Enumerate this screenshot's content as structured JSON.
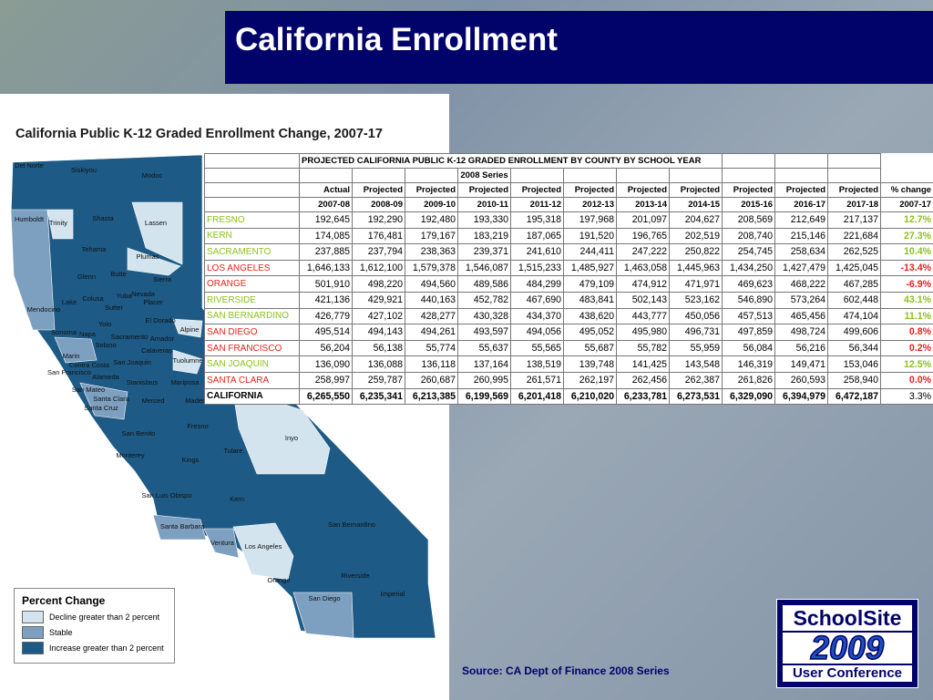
{
  "header": {
    "title": "California Enrollment"
  },
  "map": {
    "title": "California Public K-12 Graded Enrollment Change, 2007-17",
    "counties": [
      "Del Norte",
      "Siskiyou",
      "Modoc",
      "Humboldt",
      "Trinity",
      "Shasta",
      "Lassen",
      "Tehama",
      "Plumas",
      "Mendocino",
      "Glenn",
      "Butte",
      "Sierra",
      "Lake",
      "Colusa",
      "Yuba",
      "Nevada",
      "Placer",
      "Sutter",
      "Yolo",
      "El Dorado",
      "Sonoma",
      "Napa",
      "Sacramento",
      "Amador",
      "Alpine",
      "Solano",
      "Marin",
      "Contra Costa",
      "Calaveras",
      "San Francisco",
      "Alameda",
      "San Joaquin",
      "Tuolumne",
      "Stanislaus",
      "Mariposa",
      "San Mateo",
      "Santa Clara",
      "Santa Cruz",
      "Merced",
      "Madera",
      "Fresno",
      "Inyo",
      "San Benito",
      "Tulare",
      "Monterey",
      "Kings",
      "San Luis Obispo",
      "Kern",
      "Santa Barbara",
      "San Bernardino",
      "Ventura",
      "Los Angeles",
      "Riverside",
      "Orange",
      "San Diego",
      "Imperial"
    ],
    "legend": {
      "title": "Percent Change",
      "items": [
        {
          "label": "Decline greater than 2 percent",
          "color": "#d3e4ee"
        },
        {
          "label": "Stable",
          "color": "#7d9fc0"
        },
        {
          "label": "Increase greater than 2 percent",
          "color": "#1d5a86"
        }
      ]
    }
  },
  "table": {
    "title": "PROJECTED CALIFORNIA PUBLIC K-12 GRADED ENROLLMENT BY COUNTY BY SCHOOL YEAR",
    "series": "2008 Series",
    "kinds": [
      "Actual",
      "Projected",
      "Projected",
      "Projected",
      "Projected",
      "Projected",
      "Projected",
      "Projected",
      "Projected",
      "Projected",
      "Projected",
      "% change"
    ],
    "years": [
      "2007-08",
      "2008-09",
      "2009-10",
      "2010-11",
      "2011-12",
      "2012-13",
      "2013-14",
      "2014-15",
      "2015-16",
      "2016-17",
      "2017-18",
      "2007-17"
    ],
    "rows": [
      {
        "name": "FRESNO",
        "color": "#8cc21a",
        "values": [
          "192,645",
          "192,290",
          "192,480",
          "193,330",
          "195,318",
          "197,968",
          "201,097",
          "204,627",
          "208,569",
          "212,649",
          "217,137"
        ],
        "change": "12.7%"
      },
      {
        "name": "KERN",
        "color": "#8cc21a",
        "values": [
          "174,085",
          "176,481",
          "179,167",
          "183,219",
          "187,065",
          "191,520",
          "196,765",
          "202,519",
          "208,740",
          "215,146",
          "221,684"
        ],
        "change": "27.3%"
      },
      {
        "name": "SACRAMENTO",
        "color": "#8cc21a",
        "values": [
          "237,885",
          "237,794",
          "238,363",
          "239,371",
          "241,610",
          "244,411",
          "247,222",
          "250,822",
          "254,745",
          "258,634",
          "262,525"
        ],
        "change": "10.4%"
      },
      {
        "name": "LOS ANGELES",
        "color": "#e5231b",
        "values": [
          "1,646,133",
          "1,612,100",
          "1,579,378",
          "1,546,087",
          "1,515,233",
          "1,485,927",
          "1,463,058",
          "1,445,963",
          "1,434,250",
          "1,427,479",
          "1,425,045"
        ],
        "change": "-13.4%"
      },
      {
        "name": "ORANGE",
        "color": "#e5231b",
        "values": [
          "501,910",
          "498,220",
          "494,560",
          "489,586",
          "484,299",
          "479,109",
          "474,912",
          "471,971",
          "469,623",
          "468,222",
          "467,285"
        ],
        "change": "-6.9%"
      },
      {
        "name": "RIVERSIDE",
        "color": "#8cc21a",
        "values": [
          "421,136",
          "429,921",
          "440,163",
          "452,782",
          "467,690",
          "483,841",
          "502,143",
          "523,162",
          "546,890",
          "573,264",
          "602,448"
        ],
        "change": "43.1%"
      },
      {
        "name": "SAN BERNARDINO",
        "color": "#8cc21a",
        "values": [
          "426,779",
          "427,102",
          "428,277",
          "430,328",
          "434,370",
          "438,620",
          "443,777",
          "450,056",
          "457,513",
          "465,456",
          "474,104"
        ],
        "change": "11.1%"
      },
      {
        "name": "SAN DIEGO",
        "color": "#e5231b",
        "values": [
          "495,514",
          "494,143",
          "494,261",
          "493,597",
          "494,056",
          "495,052",
          "495,980",
          "496,731",
          "497,859",
          "498,724",
          "499,606"
        ],
        "change": "0.8%"
      },
      {
        "name": "SAN FRANCISCO",
        "color": "#e5231b",
        "values": [
          "56,204",
          "56,138",
          "55,774",
          "55,637",
          "55,565",
          "55,687",
          "55,782",
          "55,959",
          "56,084",
          "56,216",
          "56,344"
        ],
        "change": "0.2%"
      },
      {
        "name": "SAN JOAQUIN",
        "color": "#8cc21a",
        "values": [
          "136,090",
          "136,088",
          "136,118",
          "137,164",
          "138,519",
          "139,748",
          "141,425",
          "143,548",
          "146,319",
          "149,471",
          "153,046"
        ],
        "change": "12.5%"
      },
      {
        "name": "SANTA CLARA",
        "color": "#e5231b",
        "values": [
          "258,997",
          "259,787",
          "260,687",
          "260,995",
          "261,571",
          "262,197",
          "262,456",
          "262,387",
          "261,826",
          "260,593",
          "258,940"
        ],
        "change": "0.0%"
      },
      {
        "name": "CALIFORNIA",
        "color": "#000000",
        "values": [
          "6,265,550",
          "6,235,341",
          "6,213,385",
          "6,199,569",
          "6,201,418",
          "6,210,020",
          "6,233,781",
          "6,273,531",
          "6,329,090",
          "6,394,979",
          "6,472,187"
        ],
        "change": "3.3%"
      }
    ]
  },
  "source": "Source:  CA Dept of Finance  2008 Series",
  "logo": [
    "SchoolSite",
    "2009",
    "User Conference"
  ]
}
